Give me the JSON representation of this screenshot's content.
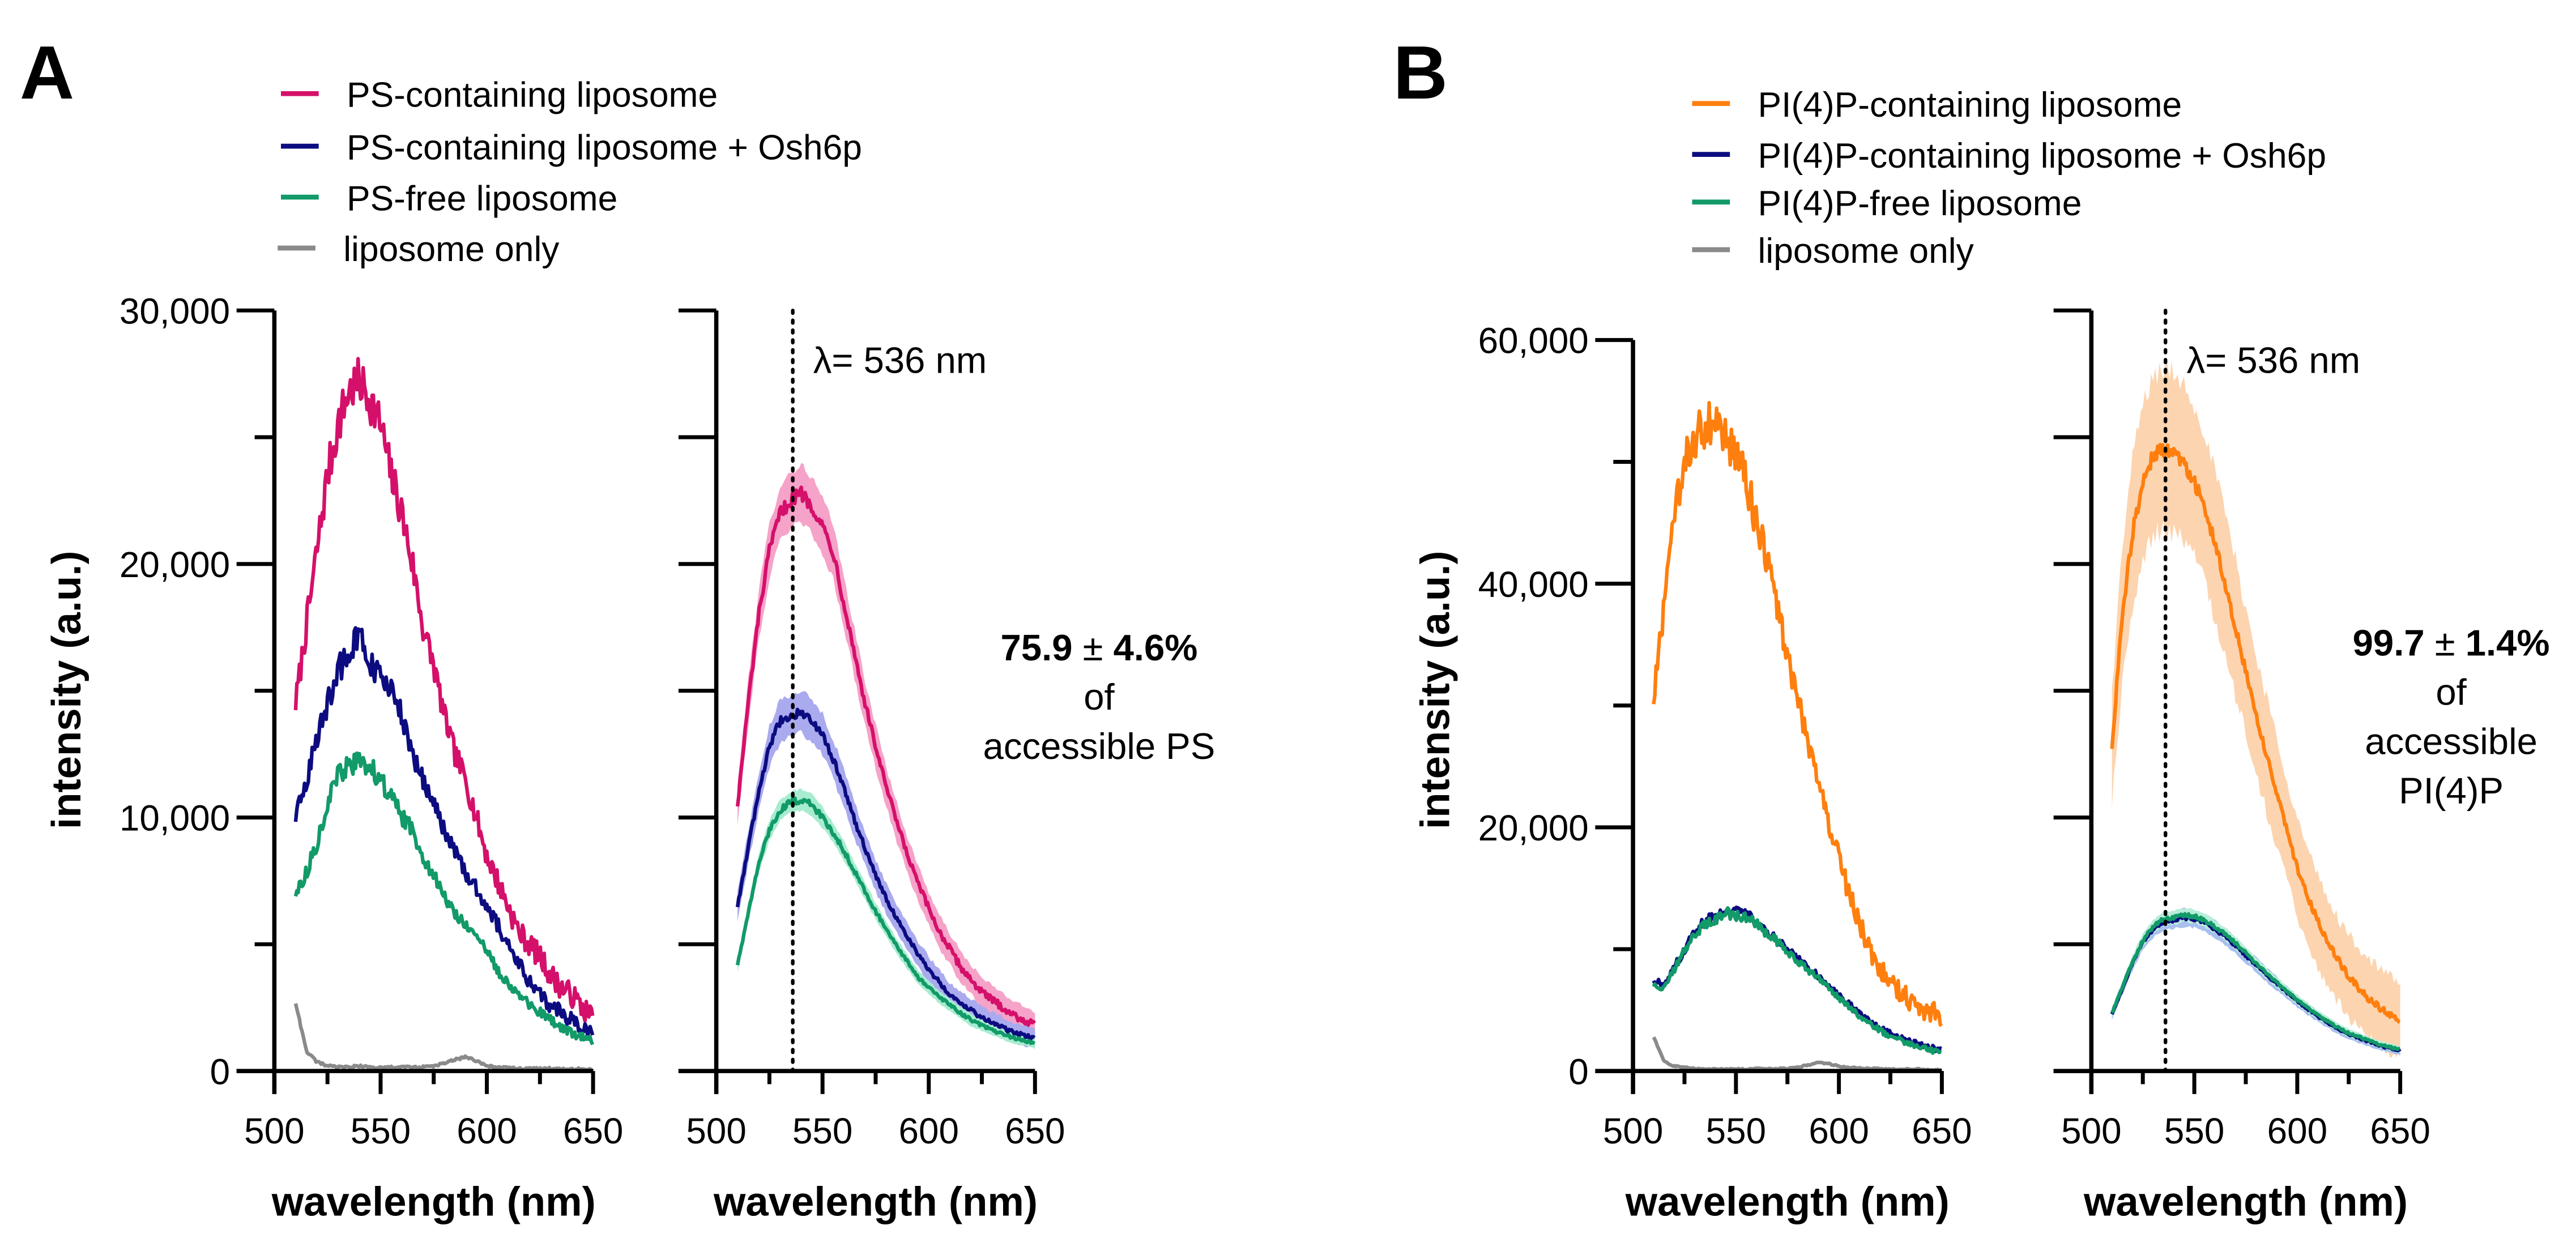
{
  "figure": {
    "panels": [
      {
        "letter": "A",
        "legend": [
          {
            "label": "PS-containing liposome",
            "color": "#d4106a"
          },
          {
            "label": "PS-containing liposome + Osh6p",
            "color": "#0c0c80"
          },
          {
            "label": "PS-free liposome",
            "color": "#129a68"
          },
          {
            "label": "liposome only",
            "color": "#8a8a8a"
          }
        ],
        "annotation": {
          "lambda_label": "λ= 536 nm",
          "value_bold": "75.9",
          "pm": "±",
          "err_bold": "4.6%",
          "line2": "of",
          "line3": "accessible PS",
          "line4": ""
        }
      },
      {
        "letter": "B",
        "legend": [
          {
            "label": "PI(4)P-containing liposome",
            "color": "#ff7f0e"
          },
          {
            "label": "PI(4)P-containing liposome + Osh6p",
            "color": "#0c0c80"
          },
          {
            "label": "PI(4)P-free liposome",
            "color": "#129a68"
          },
          {
            "label": "liposome only",
            "color": "#8a8a8a"
          }
        ],
        "annotation": {
          "lambda_label": "λ= 536 nm",
          "value_bold": "99.7",
          "pm": "±",
          "err_bold": "1.4%",
          "line2": "of",
          "line3": "accessible",
          "line4": "PI(4)P"
        }
      }
    ]
  },
  "chart_data": [
    {
      "id": "A-raw",
      "type": "line",
      "title": "",
      "xlabel": "wavelength (nm)",
      "ylabel": "intensity (a.u.)",
      "xlim": [
        500,
        650
      ],
      "ylim": [
        0,
        30000
      ],
      "xticks": [
        500,
        550,
        600,
        650
      ],
      "xminor": [
        525,
        575,
        625
      ],
      "yticks": [
        0,
        10000,
        20000,
        30000
      ],
      "ytick_labels": [
        "0",
        "10,000",
        "20,000",
        "30,000"
      ],
      "yminor": [
        5000,
        15000,
        25000
      ],
      "grid": false,
      "x": [
        510,
        515,
        520,
        525,
        530,
        535,
        540,
        545,
        550,
        555,
        560,
        565,
        570,
        575,
        580,
        585,
        590,
        595,
        600,
        605,
        610,
        615,
        620,
        625,
        630,
        635,
        640,
        645,
        650
      ],
      "series": [
        {
          "name": "PS-containing liposome",
          "color": "#d4106a",
          "values": [
            14500,
            17500,
            20500,
            23500,
            25500,
            26800,
            27200,
            26500,
            25500,
            23500,
            22000,
            20000,
            17500,
            16000,
            14000,
            12500,
            11500,
            10000,
            8500,
            7500,
            6500,
            5500,
            5000,
            4500,
            3800,
            3300,
            3000,
            2500,
            2100
          ]
        },
        {
          "name": "PS-containing liposome + Osh6p",
          "color": "#0c0c80",
          "values": [
            10000,
            11500,
            13000,
            14500,
            15800,
            16500,
            17200,
            16000,
            15500,
            15000,
            14000,
            12500,
            11500,
            10500,
            9500,
            8700,
            7800,
            7200,
            6500,
            5800,
            5000,
            4300,
            3500,
            3000,
            2600,
            2300,
            2000,
            1700,
            1500
          ]
        },
        {
          "name": "PS-free liposome",
          "color": "#129a68",
          "values": [
            7000,
            7800,
            9000,
            10500,
            11700,
            12000,
            12200,
            12000,
            11500,
            10800,
            10000,
            9500,
            8500,
            7700,
            6900,
            6200,
            5800,
            5300,
            4700,
            4000,
            3500,
            3000,
            2600,
            2300,
            2000,
            1700,
            1500,
            1300,
            1200
          ]
        },
        {
          "name": "liposome only",
          "color": "#8a8a8a",
          "values": [
            2700,
            800,
            350,
            200,
            150,
            150,
            200,
            150,
            120,
            150,
            150,
            150,
            150,
            200,
            300,
            450,
            550,
            400,
            200,
            150,
            120,
            100,
            100,
            80,
            100,
            90,
            80,
            80,
            60
          ]
        }
      ]
    },
    {
      "id": "A-mean",
      "type": "line",
      "title": "",
      "xlabel": "wavelength (nm)",
      "ylabel": "",
      "xlim": [
        500,
        650
      ],
      "ylim": [
        0,
        30000
      ],
      "xticks": [
        500,
        550,
        600,
        650
      ],
      "xminor": [
        525,
        575,
        625
      ],
      "yticks": [
        0,
        5000,
        10000,
        15000,
        20000,
        25000,
        30000
      ],
      "ytick_labels": [],
      "grid": false,
      "vline": 536,
      "x": [
        510,
        515,
        520,
        525,
        530,
        535,
        540,
        545,
        550,
        555,
        560,
        565,
        570,
        575,
        580,
        585,
        590,
        595,
        600,
        605,
        610,
        615,
        620,
        625,
        630,
        635,
        640,
        645,
        650
      ],
      "series": [
        {
          "name": "PS-containing liposome",
          "color": "#d4106a",
          "band_color": "#f5a3c8",
          "band": 800,
          "values": [
            10500,
            14500,
            18000,
            20500,
            22000,
            22500,
            22800,
            22300,
            21500,
            20500,
            18500,
            16500,
            14500,
            12800,
            11200,
            9800,
            8500,
            7400,
            6400,
            5500,
            4800,
            4100,
            3600,
            3100,
            2800,
            2500,
            2200,
            2000,
            1800
          ]
        },
        {
          "name": "PS-containing liposome + Osh6p",
          "color": "#0c0c80",
          "band_color": "#aaaaee",
          "band": 600,
          "values": [
            6500,
            8800,
            11000,
            12800,
            13800,
            14000,
            14200,
            13800,
            13300,
            12300,
            11200,
            9900,
            8800,
            7700,
            6800,
            6000,
            5300,
            4600,
            4000,
            3500,
            3000,
            2700,
            2400,
            2100,
            1900,
            1700,
            1500,
            1400,
            1300
          ]
        },
        {
          "name": "PS-free liposome",
          "color": "#129a68",
          "band_color": "#a8ecd0",
          "band": 300,
          "values": [
            4200,
            6200,
            8200,
            9500,
            10300,
            10600,
            10700,
            10500,
            10000,
            9400,
            8700,
            7900,
            7100,
            6300,
            5600,
            4900,
            4300,
            3700,
            3300,
            2900,
            2600,
            2300,
            2000,
            1800,
            1600,
            1450,
            1300,
            1200,
            1100
          ]
        }
      ]
    },
    {
      "id": "B-raw",
      "type": "line",
      "title": "",
      "xlabel": "wavelength (nm)",
      "ylabel": "intensity (a.u.)",
      "xlim": [
        500,
        650
      ],
      "ylim": [
        0,
        60000
      ],
      "xticks": [
        500,
        550,
        600,
        650
      ],
      "xminor": [
        525,
        575,
        625
      ],
      "yticks": [
        0,
        20000,
        40000,
        60000
      ],
      "ytick_labels": [
        "0",
        "20,000",
        "40,000",
        "60,000"
      ],
      "yminor": [
        10000,
        30000,
        50000
      ],
      "grid": false,
      "x": [
        510,
        515,
        520,
        525,
        530,
        535,
        540,
        545,
        550,
        555,
        560,
        565,
        570,
        575,
        580,
        585,
        590,
        595,
        600,
        605,
        610,
        615,
        620,
        625,
        630,
        635,
        640,
        645,
        650
      ],
      "series": [
        {
          "name": "PI(4)P-containing liposome",
          "color": "#ff7f0e",
          "values": [
            30500,
            38000,
            45000,
            50000,
            52000,
            53000,
            53200,
            52000,
            50500,
            48500,
            45000,
            42000,
            38000,
            34000,
            30500,
            27000,
            24000,
            20500,
            17500,
            14500,
            12000,
            10000,
            8500,
            7500,
            6500,
            5800,
            5200,
            4800,
            4600
          ]
        },
        {
          "name": "PI(4)P-containing liposome + Osh6p",
          "color": "#0c0c80",
          "values": [
            7500,
            7000,
            8500,
            10000,
            11500,
            12300,
            12800,
            13200,
            13100,
            12800,
            12300,
            11500,
            10800,
            10000,
            9200,
            8500,
            7800,
            7000,
            6200,
            5500,
            4700,
            4100,
            3500,
            3100,
            2700,
            2400,
            2100,
            1900,
            1700
          ]
        },
        {
          "name": "PI(4)P-free liposome",
          "color": "#129a68",
          "values": [
            7000,
            6800,
            8300,
            9800,
            11200,
            12000,
            12500,
            13000,
            12800,
            12500,
            12200,
            11300,
            10600,
            9800,
            9000,
            8300,
            7600,
            6800,
            6000,
            5300,
            4500,
            3900,
            3300,
            2900,
            2500,
            2200,
            1900,
            1700,
            1500
          ]
        },
        {
          "name": "liposome only",
          "color": "#8a8a8a",
          "values": [
            2800,
            800,
            400,
            300,
            200,
            150,
            150,
            150,
            150,
            150,
            200,
            200,
            200,
            200,
            300,
            500,
            700,
            600,
            400,
            300,
            250,
            200,
            200,
            150,
            150,
            150,
            150,
            100,
            100
          ]
        }
      ]
    },
    {
      "id": "B-mean",
      "type": "line",
      "title": "",
      "xlabel": "wavelength (nm)",
      "ylabel": "",
      "xlim": [
        500,
        650
      ],
      "ylim": [
        0,
        60000
      ],
      "xticks": [
        500,
        550,
        600,
        650
      ],
      "xminor": [
        525,
        575,
        625
      ],
      "yticks": [
        0,
        10000,
        20000,
        30000,
        40000,
        50000,
        60000
      ],
      "ytick_labels": [],
      "grid": false,
      "vline": 536,
      "x": [
        510,
        515,
        520,
        525,
        530,
        535,
        540,
        545,
        550,
        555,
        560,
        565,
        570,
        575,
        580,
        585,
        590,
        595,
        600,
        605,
        610,
        615,
        620,
        625,
        630,
        635,
        640,
        645,
        650
      ],
      "series": [
        {
          "name": "PI(4)P-containing liposome",
          "color": "#ff7f0e",
          "band_color": "#fcd4b0",
          "band": 4500,
          "values": [
            25500,
            36000,
            42500,
            46500,
            48500,
            49000,
            48800,
            48000,
            46500,
            44500,
            41500,
            38500,
            35000,
            31500,
            28000,
            25000,
            22000,
            19000,
            16000,
            13800,
            11800,
            10000,
            8700,
            7500,
            6500,
            5700,
            5000,
            4500,
            4000
          ]
        },
        {
          "name": "PI(4)P-containing liposome + Osh6p",
          "color": "#0c0c80",
          "band_color": "#a8c0ee",
          "band": 500,
          "values": [
            4500,
            6500,
            8500,
            10200,
            11200,
            11800,
            11900,
            12100,
            12000,
            11700,
            11200,
            10600,
            9900,
            9100,
            8400,
            7600,
            6900,
            6200,
            5500,
            4900,
            4300,
            3800,
            3300,
            2900,
            2600,
            2300,
            2000,
            1800,
            1600
          ]
        },
        {
          "name": "PI(4)P-free liposome",
          "color": "#129a68",
          "band_color": "#b8eed8",
          "band": 400,
          "values": [
            4600,
            6600,
            8600,
            10300,
            11400,
            12000,
            12100,
            12300,
            12200,
            11900,
            11400,
            10800,
            10100,
            9300,
            8500,
            7700,
            7000,
            6300,
            5600,
            5000,
            4400,
            3900,
            3400,
            3000,
            2700,
            2400,
            2100,
            1900,
            1700
          ]
        }
      ]
    }
  ]
}
